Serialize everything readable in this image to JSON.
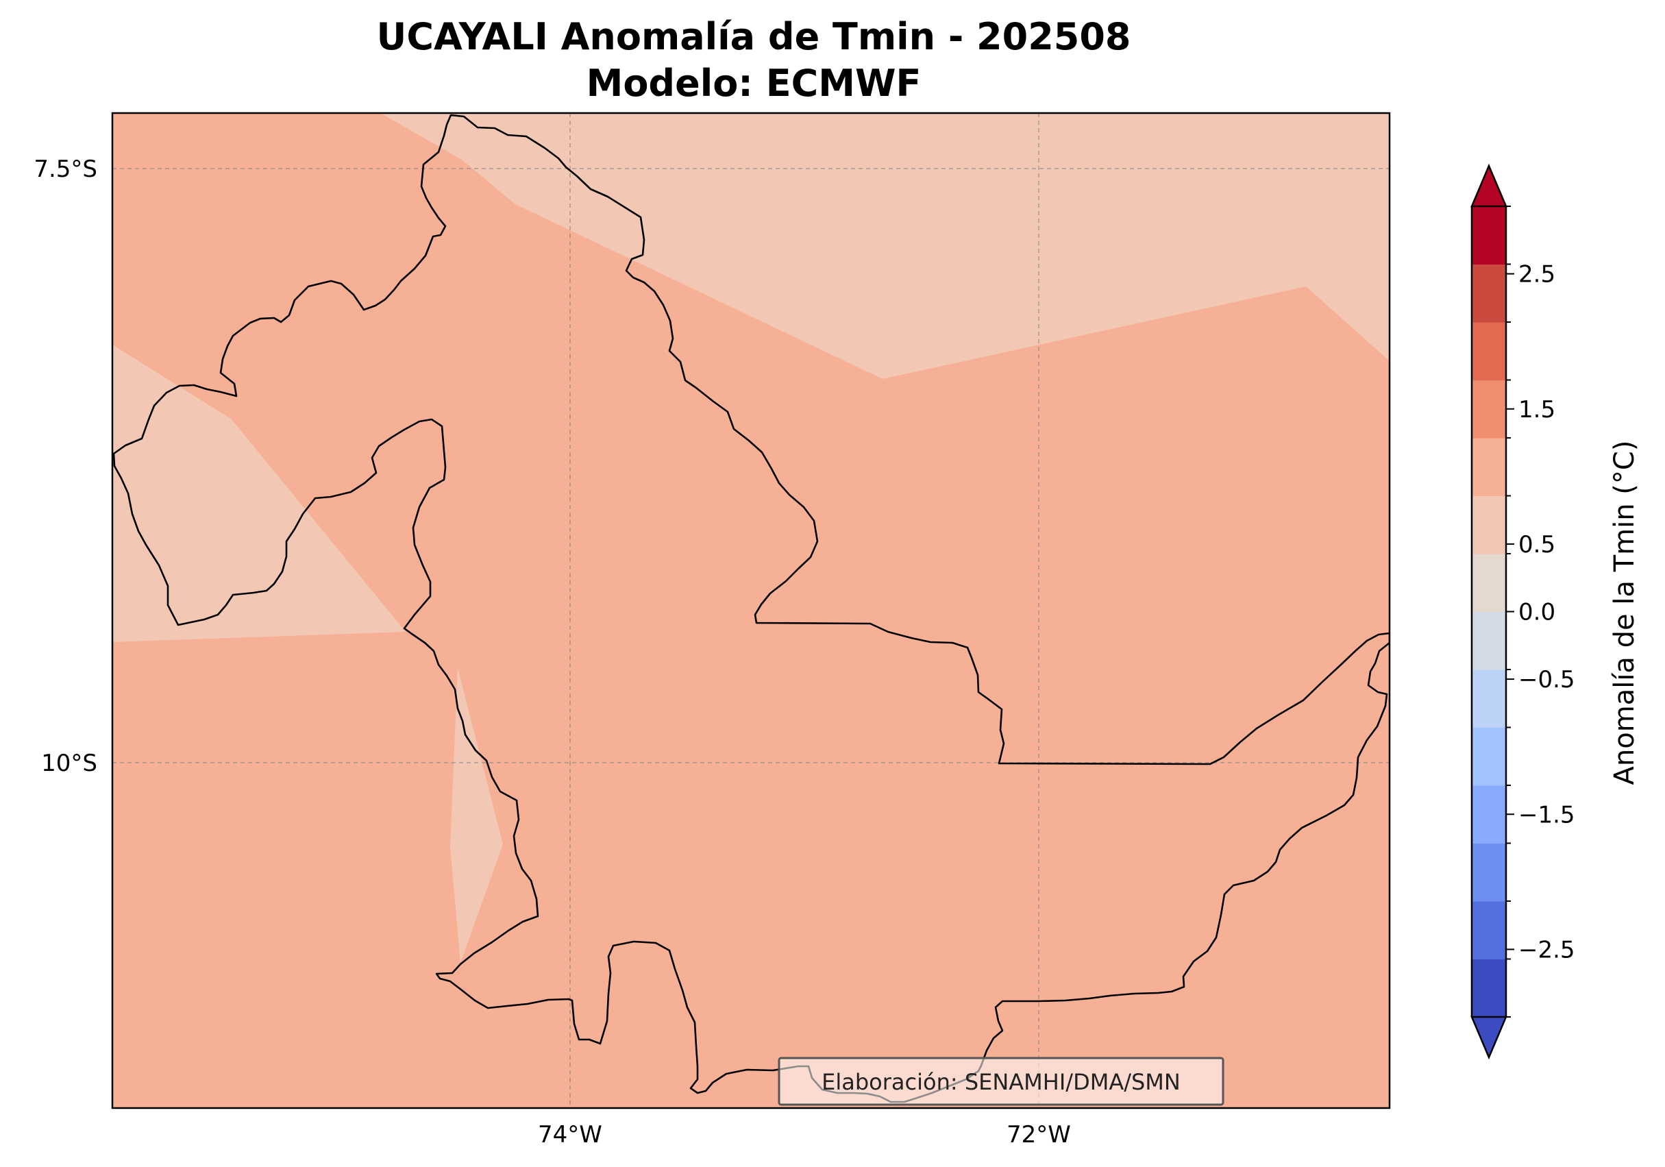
{
  "title": {
    "line1": "UCAYALI Anomalía de Tmin - 202508",
    "line2": "Modelo: ECMWF"
  },
  "map": {
    "lon_ticks": [
      {
        "value": -74,
        "label": "74°W"
      },
      {
        "value": -72,
        "label": "72°W"
      }
    ],
    "lat_ticks": [
      {
        "value": -7.5,
        "label": "7.5°S"
      },
      {
        "value": -10,
        "label": "10°S"
      }
    ],
    "gridlines": true,
    "credit": "Elaboración: SENAMHI/DMA/SMN",
    "colors": {
      "dominant_fill": "#f6b096",
      "secondary_fill": "#f2c8b4",
      "border": "#000000"
    }
  },
  "colorbar": {
    "label": "Anomalía de la Tmin (°C)",
    "ticks": [
      {
        "value": 2.5,
        "label": "2.5"
      },
      {
        "value": 1.5,
        "label": "1.5"
      },
      {
        "value": 0.5,
        "label": "0.5"
      },
      {
        "value": 0.0,
        "label": "0.0"
      },
      {
        "value": -0.5,
        "label": "−0.5"
      },
      {
        "value": -1.5,
        "label": "−1.5"
      },
      {
        "value": -2.5,
        "label": "−2.5"
      }
    ],
    "min": -3.0,
    "max": 3.0,
    "extend": "both",
    "colors_bottom_to_top": [
      "#3b4cc0",
      "#5470de",
      "#6c8ff1",
      "#88abfd",
      "#a2c1ff",
      "#bcd2f7",
      "#d2dbe6",
      "#e5d8cf",
      "#f2c8b4",
      "#f6b096",
      "#f08f70",
      "#e26a51",
      "#cb4a3f",
      "#b40426"
    ],
    "extend_low_color": "#3b4cc0",
    "extend_high_color": "#b40426"
  }
}
